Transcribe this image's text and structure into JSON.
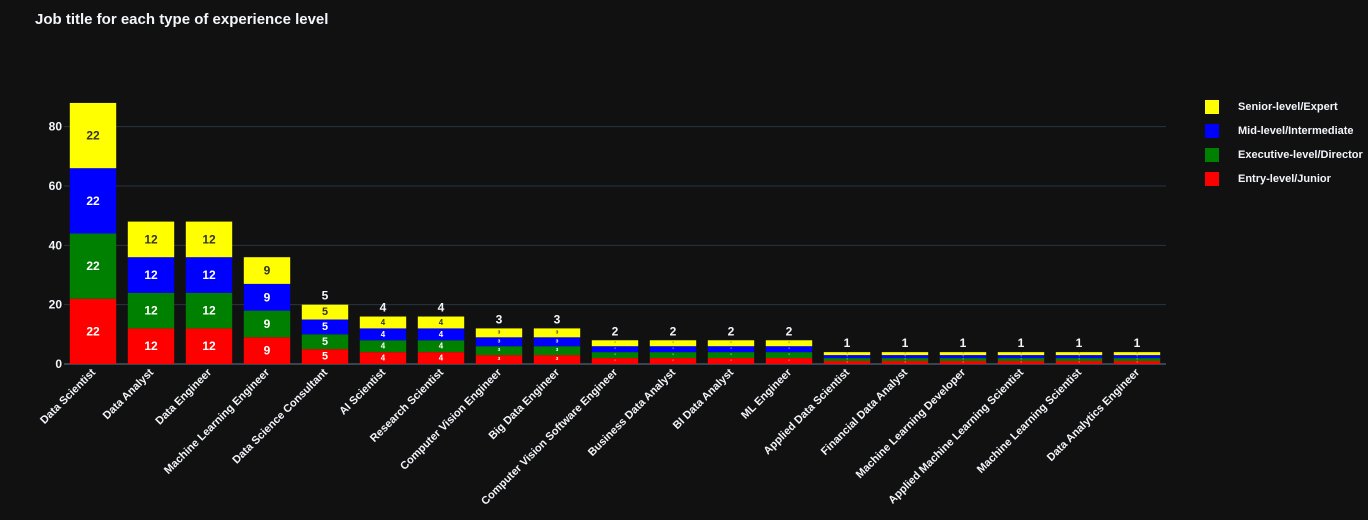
{
  "chart_data": {
    "type": "bar",
    "barmode": "stack",
    "title": "Job title for each type of experience level",
    "xlabel": "",
    "ylabel": "",
    "ylim": [
      0,
      90
    ],
    "y_ticks": [
      0,
      20,
      40,
      60,
      80
    ],
    "grid": true,
    "legend_position": "right",
    "categories": [
      "Data Scientist",
      "Data Analyst",
      "Data Engineer",
      "Machine Learning Engineer",
      "Data Science Consultant",
      "AI Scientist",
      "Research Scientist",
      "Computer Vision Engineer",
      "Big Data Engineer",
      "Computer Vision Software Engineer",
      "Business Data Analyst",
      "BI Data Analyst",
      "ML Engineer",
      "Applied Data Scientist",
      "Financial Data Analyst",
      "Machine Learning Developer",
      "Applied Machine Learning Scientist",
      "Machine Learning Scientist",
      "Data Analytics Engineer"
    ],
    "series": [
      {
        "name": "Entry-level/Junior",
        "color": "#ff0000",
        "label_color": "#ffffff",
        "values": [
          22,
          12,
          12,
          9,
          5,
          4,
          4,
          3,
          3,
          2,
          2,
          2,
          2,
          1,
          1,
          1,
          1,
          1,
          1
        ]
      },
      {
        "name": "Executive-level/Director",
        "color": "#008000",
        "label_color": "#ffffff",
        "values": [
          22,
          12,
          12,
          9,
          5,
          4,
          4,
          3,
          3,
          2,
          2,
          2,
          2,
          1,
          1,
          1,
          1,
          1,
          1
        ]
      },
      {
        "name": "Mid-level/Intermediate",
        "color": "#0000ff",
        "label_color": "#ffffff",
        "values": [
          22,
          12,
          12,
          9,
          5,
          4,
          4,
          3,
          3,
          2,
          2,
          2,
          2,
          1,
          1,
          1,
          1,
          1,
          1
        ]
      },
      {
        "name": "Senior-level/Expert",
        "color": "#ffff00",
        "label_color": "#333333",
        "values": [
          22,
          12,
          12,
          9,
          5,
          4,
          4,
          3,
          3,
          2,
          2,
          2,
          2,
          1,
          1,
          1,
          1,
          1,
          1
        ]
      }
    ],
    "legend_order": [
      "Senior-level/Expert",
      "Mid-level/Intermediate",
      "Executive-level/Director",
      "Entry-level/Junior"
    ]
  },
  "colors": {
    "background": "#111111",
    "gridline": "#283442",
    "zeroline": "#3a4450",
    "text": "#f2f5fa"
  }
}
